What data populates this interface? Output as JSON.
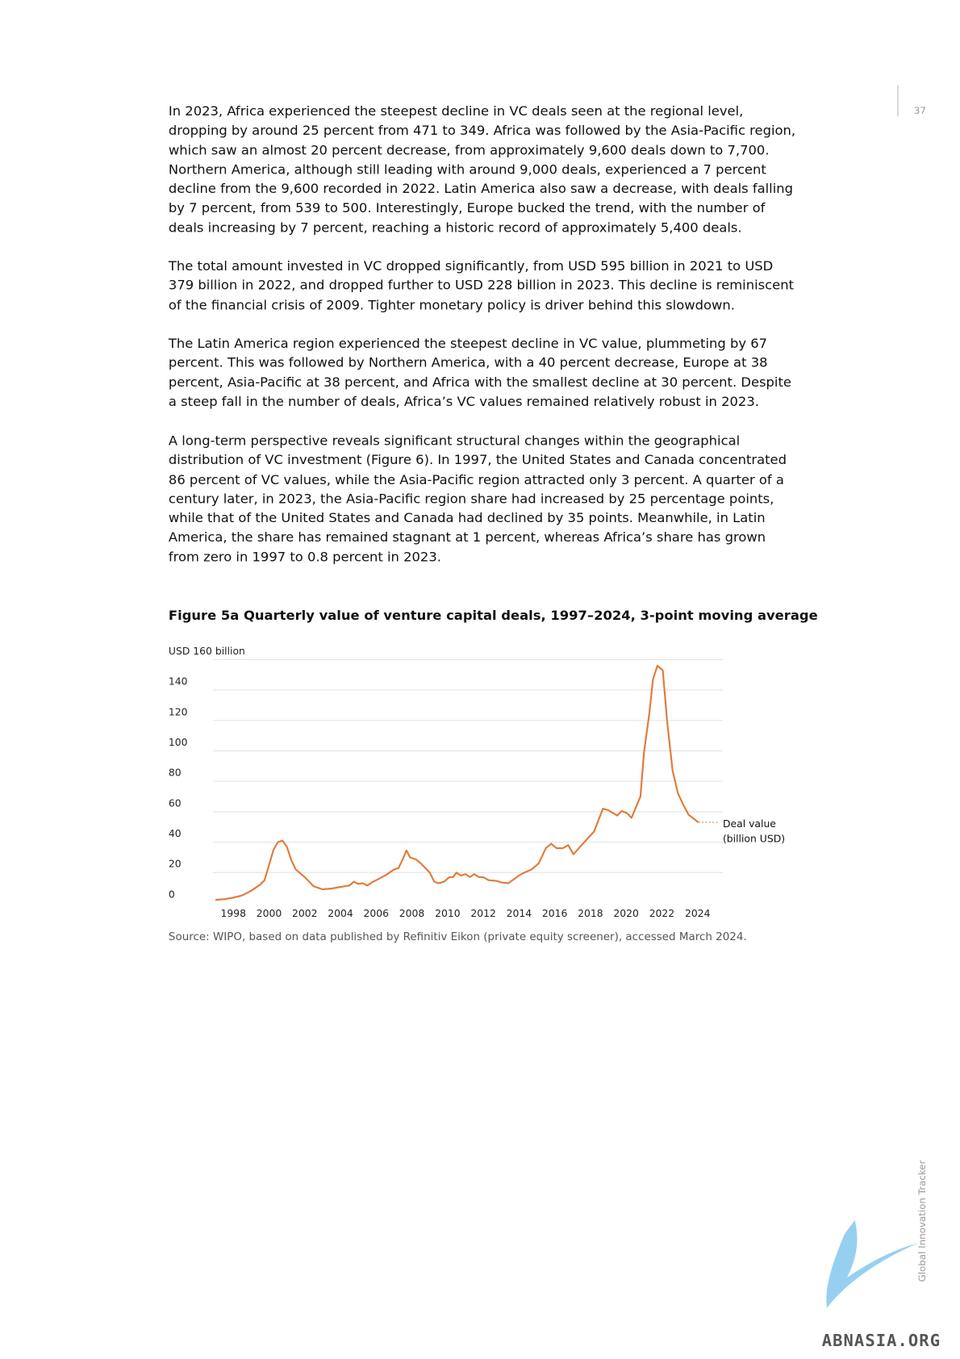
{
  "page_number": "37",
  "paragraphs": [
    "In 2023, Africa experienced the steepest decline in VC deals seen at the regional level, dropping by around 25 percent from 471 to 349. Africa was followed by the Asia-Pacific region, which saw an almost 20 percent decrease, from approximately 9,600 deals down to 7,700. Northern America, although still leading with around 9,000 deals, experienced a 7 percent decline from the 9,600 recorded in 2022. Latin America also saw a decrease, with deals falling by 7 percent, from 539 to 500. Interestingly, Europe bucked the trend, with the number of deals increasing by 7 percent, reaching a historic record of approximately 5,400 deals.",
    "The total amount invested in VC dropped significantly, from USD 595 billion in 2021 to USD 379 billion in 2022, and dropped further to USD 228 billion in 2023. This decline is reminiscent of the financial crisis of 2009. Tighter monetary policy is driver behind this slowdown.",
    "The Latin America region experienced the steepest decline in VC value, plummeting by 67 percent. This was followed by Northern America, with a 40 percent decrease, Europe at 38 percent, Asia-Pacific at 38 percent, and Africa with the smallest decline at 30 percent. Despite a steep fall in the number of deals, Africa’s VC values remained relatively robust in 2023.",
    "A long-term perspective reveals significant structural changes within the geographical distribution of VC investment (Figure 6). In 1997, the United States and Canada concentrated 86 percent of VC values, while the Asia-Pacific region attracted only 3 percent. A quarter of a century later, in 2023, the Asia-Pacific region share had increased by 25 percentage points, while that of the United States and Canada had declined by 35 points. Meanwhile, in Latin America, the share has remained stagnant at 1 percent, whereas Africa’s share has grown from zero in 1997 to 0.8 percent in 2023."
  ],
  "chart_data": {
    "type": "line",
    "title": "Figure 5a Quarterly value of venture capital deals, 1997–2024, 3-point moving average",
    "source": "Source: WIPO, based on data published by Refinitiv Eikon (private equity screener), accessed March 2024.",
    "xlim": [
      1997,
      2024.05
    ],
    "xticks": [
      1998,
      2000,
      2002,
      2004,
      2006,
      2008,
      2010,
      2012,
      2014,
      2016,
      2018,
      2020,
      2022,
      2024
    ],
    "ylim": [
      0,
      160
    ],
    "yticks": [
      0,
      20,
      40,
      60,
      80,
      100,
      120,
      140,
      {
        "value": 160,
        "label": "USD 160 billion"
      }
    ],
    "grid": true,
    "series": [
      {
        "name": "Deal value (billion USD)",
        "color": "#e07b39",
        "x": [
          1997,
          1997.5,
          1998,
          1998.5,
          1999,
          1999.5,
          1999.75,
          2000,
          2000.25,
          2000.5,
          2000.75,
          2001,
          2001.25,
          2001.5,
          2002,
          2002.5,
          2003,
          2003.5,
          2004,
          2004.5,
          2004.75,
          2005,
          2005.25,
          2005.5,
          2005.75,
          2006,
          2006.5,
          2007,
          2007.25,
          2007.5,
          2007.7,
          2007.9,
          2008.25,
          2008.5,
          2009,
          2009.25,
          2009.5,
          2009.8,
          2010.1,
          2010.3,
          2010.5,
          2010.75,
          2011,
          2011.25,
          2011.5,
          2011.75,
          2012,
          2012.3,
          2012.75,
          2013,
          2013.4,
          2014,
          2014.3,
          2014.7,
          2015.1,
          2015.5,
          2015.8,
          2016.1,
          2016.45,
          2016.75,
          2017.05,
          2017.5,
          2018.2,
          2018.7,
          2019,
          2019.5,
          2019.75,
          2020.05,
          2020.3,
          2020.8,
          2021,
          2021.3,
          2021.5,
          2021.75,
          2022.05,
          2022.3,
          2022.6,
          2022.9,
          2023.2,
          2023.5,
          2024.05
        ],
        "values": [
          2,
          2.5,
          3.5,
          5,
          8,
          12,
          15,
          25,
          35,
          40,
          41,
          37,
          28,
          22,
          17,
          11,
          9,
          9.5,
          10.5,
          11.5,
          14,
          12.5,
          13,
          11.5,
          13.5,
          15,
          18,
          22,
          23,
          29,
          34.5,
          30,
          28.5,
          26,
          20,
          14,
          13,
          14,
          17,
          17,
          20,
          18,
          19,
          17,
          19,
          17,
          17,
          15,
          14.5,
          13.5,
          13,
          18,
          20,
          22,
          26,
          36,
          39,
          36,
          36,
          38,
          32,
          38,
          47,
          62,
          61,
          57.5,
          60.5,
          59,
          56,
          70,
          99,
          125,
          147,
          156,
          153,
          119,
          87,
          72,
          64.6,
          58,
          53
        ]
      }
    ]
  },
  "sidebar_label": "Global Innovation Tracker",
  "watermark": "ABNASIA.ORG"
}
